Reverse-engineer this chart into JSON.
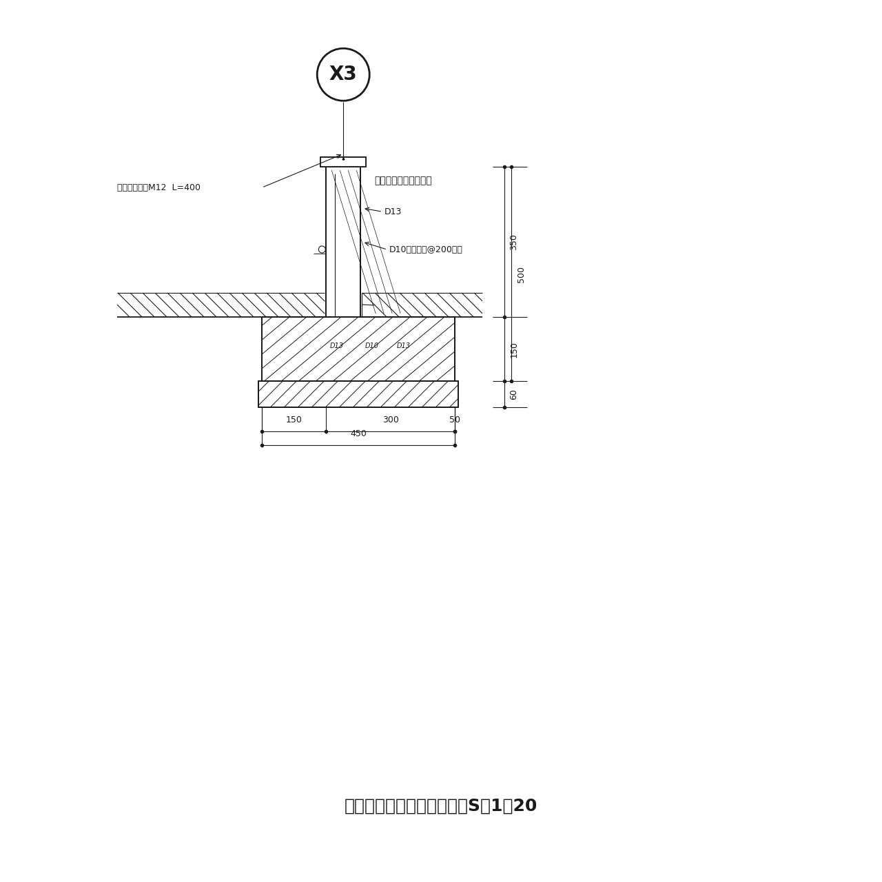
{
  "title": "新設基礎補強２詳細図　　S＝1：20",
  "bg_color": "#ffffff",
  "line_color": "#1a1a1a",
  "annotations": {
    "anchor_bolt": "アンカーボルM12  L=400",
    "foundation_top": "基礎天端は現場あわせ",
    "d13_label": "D13",
    "d10_label": "D10タテヨコ@200以下",
    "d13_bot1": "D13",
    "d10_bot": "D10",
    "d13_bot2": "D13",
    "x3": "X3"
  },
  "dims_right": [
    "350",
    "500",
    "150",
    "60"
  ],
  "dims_bottom": [
    "150",
    "300",
    "50",
    "450"
  ]
}
